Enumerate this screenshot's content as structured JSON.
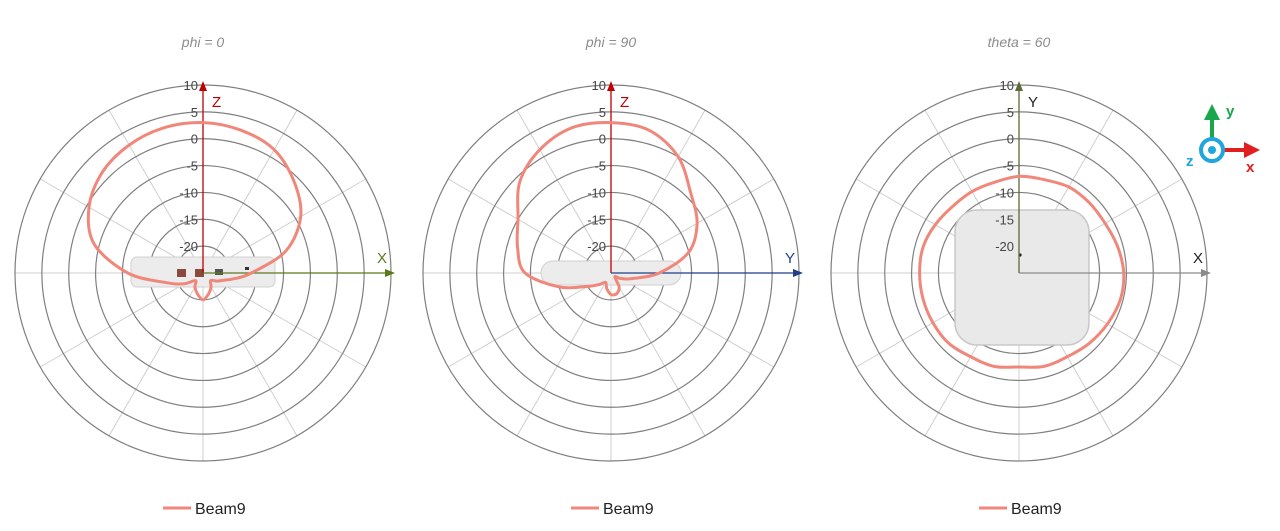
{
  "colors": {
    "series": "#f0877a",
    "grid": "#7f7f7f",
    "spoke": "#cfcfcf",
    "z_axis": "#c00000",
    "x_axis": "#5b7a1e",
    "y_axis_blue": "#1f3f8a",
    "x_axis_grey": "#8a8a8a",
    "y_axis_olive": "#5b6b3a",
    "triad_y": "#18a84b",
    "triad_x": "#e02020",
    "triad_z": "#1fa6e0"
  },
  "triad": {
    "y_label": "y",
    "x_label": "x",
    "z_label": "z"
  },
  "chart_data": [
    {
      "type": "polar-line",
      "title": "phi = 0",
      "radial_ticks": [
        "10",
        "5",
        "0",
        "-5",
        "-10",
        "-15",
        "-20"
      ],
      "rlim": [
        -25,
        10
      ],
      "radial_step": 5,
      "spokes_deg": 30,
      "axis_up_label": "Z",
      "axis_right_label": "X",
      "axis_right_color": "x_axis",
      "device": "side",
      "legend": "Beam9",
      "series": [
        {
          "name": "Beam9",
          "angle_deg": [
            0,
            15,
            30,
            45,
            60,
            75,
            90,
            100,
            110,
            120,
            135,
            150,
            165,
            180,
            195,
            210,
            225,
            240,
            255,
            270,
            285,
            300,
            315,
            330,
            345
          ],
          "r_dB": [
            3,
            2.5,
            1.5,
            -1,
            -4,
            -9,
            -16,
            -19,
            -21,
            -22,
            -23,
            -22,
            -21,
            -20,
            -21,
            -22,
            -23,
            -21,
            -18,
            -11,
            -4,
            -0.5,
            1.5,
            2.5,
            3
          ]
        }
      ]
    },
    {
      "type": "polar-line",
      "title": "phi = 90",
      "radial_ticks": [
        "10",
        "5",
        "0",
        "-5",
        "-10",
        "-15",
        "-20"
      ],
      "rlim": [
        -25,
        10
      ],
      "radial_step": 5,
      "spokes_deg": 30,
      "axis_up_label": "Z",
      "axis_right_label": "Y",
      "axis_right_color": "y_axis_blue",
      "device": "flat",
      "legend": "Beam9",
      "series": [
        {
          "name": "Beam9",
          "angle_deg": [
            0,
            15,
            30,
            45,
            60,
            75,
            90,
            105,
            120,
            135,
            150,
            165,
            180,
            195,
            210,
            225,
            240,
            255,
            270,
            285,
            300,
            315,
            330,
            345
          ],
          "r_dB": [
            3,
            2.5,
            0,
            -4,
            -6.5,
            -10,
            -16,
            -21,
            -23,
            -24,
            -22,
            -21,
            -21,
            -22,
            -23,
            -22,
            -20,
            -15,
            -9,
            -7,
            -5,
            -1,
            1.5,
            3
          ]
        }
      ]
    },
    {
      "type": "polar-line",
      "title": "theta = 60",
      "radial_ticks": [
        "10",
        "5",
        "0",
        "-5",
        "-10",
        "-15",
        "-20"
      ],
      "rlim": [
        -25,
        10
      ],
      "radial_step": 5,
      "spokes_deg": 30,
      "axis_up_label": "Y",
      "axis_right_label": "X",
      "axis_right_color": "x_axis_grey",
      "axis_up_color": "y_axis_olive",
      "device": "top",
      "legend": "Beam9",
      "series": [
        {
          "name": "Beam9",
          "angle_deg": [
            0,
            15,
            30,
            45,
            60,
            75,
            90,
            105,
            120,
            135,
            150,
            165,
            180,
            195,
            210,
            225,
            240,
            255,
            270,
            285,
            300,
            315,
            330,
            345
          ],
          "r_dB": [
            -7,
            -7,
            -6.5,
            -6.5,
            -6.5,
            -6,
            -5.5,
            -5.5,
            -6,
            -6.5,
            -7,
            -7,
            -7.5,
            -7,
            -7,
            -6.5,
            -6.5,
            -6.5,
            -6.5,
            -6.5,
            -7,
            -7.5,
            -7.5,
            -7.5
          ]
        }
      ]
    }
  ]
}
